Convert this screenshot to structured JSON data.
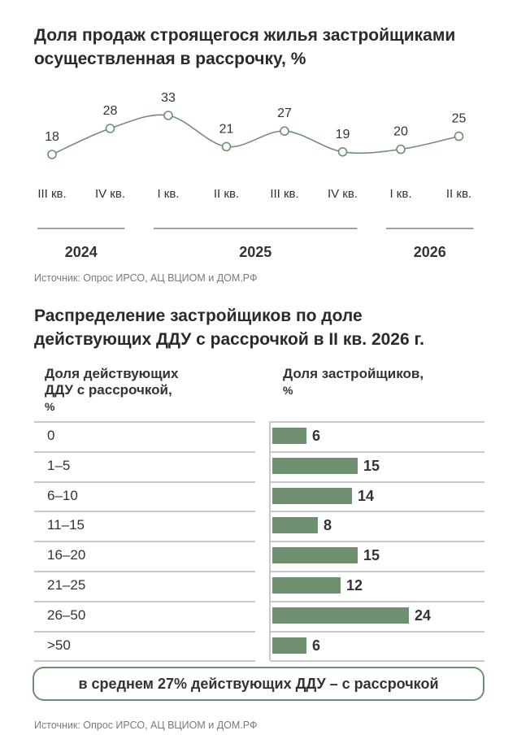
{
  "chart1": {
    "title_lines": [
      "Доля продаж строящегося жилья застройщиками",
      "осуществленная в рассрочку, %"
    ],
    "source": "Источник: Опрос ИРСО, АЦ ВЦИОМ и ДОМ.РФ"
  },
  "chart2": {
    "title_lines": [
      "Распределение застройщиков по доле",
      "действующих ДДУ с рассрочкой в II кв. 2026 г."
    ],
    "col1_header_lines": [
      "Доля действующих",
      "ДДУ с рассрочкой,",
      "%"
    ],
    "col2_header_lines": [
      "Доля застройщиков,",
      "%"
    ],
    "summary": "в среднем 27% действующих ДДУ – с рассрочкой",
    "source": "Источник: Опрос ИРСО, АЦ ВЦИОМ и ДОМ.РФ"
  },
  "colors": {
    "accent": "#6f9070",
    "text": "#2b2b2b",
    "rule": "#c9c9c9"
  },
  "chart_data": [
    {
      "type": "line",
      "title": "Доля продаж строящегося жилья застройщиками, осуществленная в рассрочку, %",
      "categories": [
        "III кв.",
        "IV кв.",
        "I кв.",
        "II кв.",
        "III кв.",
        "IV кв.",
        "I кв.",
        "II кв."
      ],
      "year_groups": [
        {
          "label": "2024",
          "span": [
            0,
            1
          ]
        },
        {
          "label": "2025",
          "span": [
            2,
            5
          ]
        },
        {
          "label": "2026",
          "span": [
            6,
            7
          ]
        }
      ],
      "series": [
        {
          "values": [
            18,
            28,
            33,
            21,
            27,
            19,
            20,
            25
          ]
        }
      ],
      "grid": false
    },
    {
      "type": "bar",
      "orientation": "horizontal",
      "title": "Распределение застройщиков по доле действующих ДДУ с рассрочкой в II кв. 2026 г.",
      "categories": [
        "0",
        "1–5",
        "6–10",
        "11–15",
        "16–20",
        "21–25",
        "26–50",
        ">50"
      ],
      "values": [
        6,
        15,
        14,
        8,
        15,
        12,
        24,
        6
      ],
      "xlim": [
        0,
        24
      ]
    }
  ]
}
